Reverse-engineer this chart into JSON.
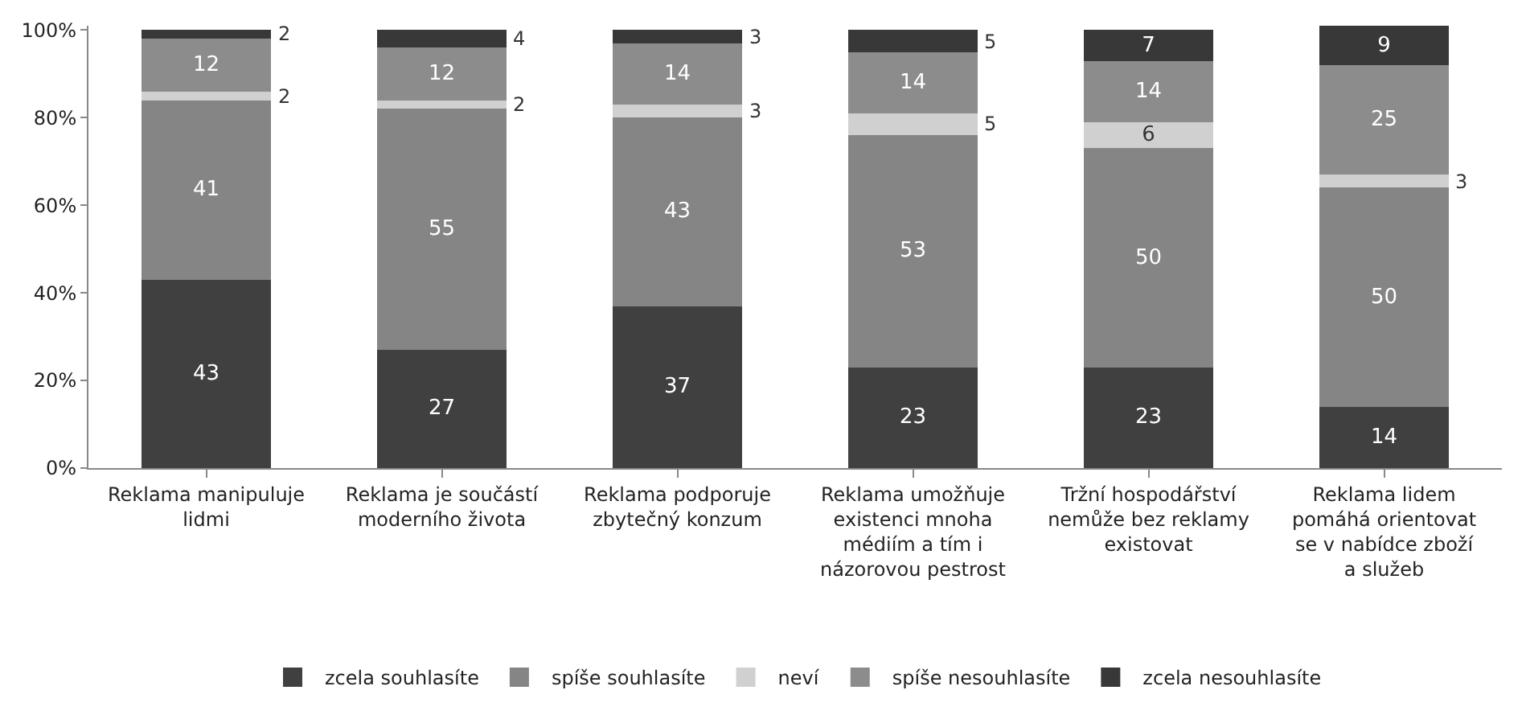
{
  "chart_data": {
    "type": "bar",
    "stacked": true,
    "categories": [
      "Reklama manipuluje lidmi",
      "Reklama je součástí moderního života",
      "Reklama podporuje zbytečný konzum",
      "Reklama umožňuje existenci mnoha médiím a tím i názorovou pestrost",
      "Tržní hospodářství nemůže bez reklamy existovat",
      "Reklama lidem pomáhá orientovat se v nabídce zboží a služeb"
    ],
    "series": [
      {
        "name": "zcela souhlasíte",
        "color": "#404040",
        "values": [
          43,
          27,
          37,
          23,
          23,
          14
        ]
      },
      {
        "name": "spíše souhlasíte",
        "color": "#858585",
        "values": [
          41,
          55,
          43,
          53,
          50,
          50
        ]
      },
      {
        "name": "neví",
        "color": "#d0d0d0",
        "values": [
          2,
          2,
          3,
          5,
          6,
          3
        ]
      },
      {
        "name": "spíše nesouhlasíte",
        "color": "#8c8c8c",
        "values": [
          12,
          12,
          14,
          14,
          14,
          25
        ]
      },
      {
        "name": "zcela nesouhlasíte",
        "color": "#383838",
        "values": [
          2,
          4,
          3,
          5,
          7,
          9
        ]
      }
    ],
    "ylim": [
      0,
      101
    ],
    "yticks": [
      {
        "value": 0,
        "label": "0%"
      },
      {
        "value": 20,
        "label": "20%"
      },
      {
        "value": 40,
        "label": "40%"
      },
      {
        "value": 60,
        "label": "60%"
      },
      {
        "value": 80,
        "label": "80%"
      },
      {
        "value": 100,
        "label": "100%"
      }
    ],
    "data_labels": true,
    "legend": "bottom"
  }
}
